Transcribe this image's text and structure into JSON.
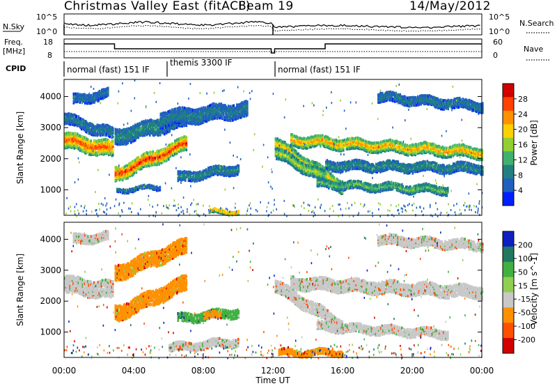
{
  "header": {
    "title": "Christmas Valley East (fitACF)",
    "beam": "Beam 19",
    "date": "14/May/2012"
  },
  "panels": {
    "nsky_label": "N.Sky",
    "nsky_ticks": [
      "10^5",
      "10^0"
    ],
    "nsearch_label": "N.Search",
    "nsearch_ticks": [
      "10^5",
      "10^0"
    ],
    "freq_label_1": "Freq.",
    "freq_label_2": "[MHz]",
    "freq_ticks": [
      "18",
      "8"
    ],
    "nave_label": "Nave",
    "nave_ticks": [
      "60",
      "0"
    ],
    "cpid_label": "CPID",
    "cpid_segments": [
      {
        "label": "normal (fast) 151 IF",
        "start_h": 0,
        "end_h": 6
      },
      {
        "label": "themis 3300 IF",
        "start_h": 6,
        "end_h": 12
      },
      {
        "label": "normal (fast) 151 IF",
        "start_h": 12,
        "end_h": 24
      }
    ]
  },
  "chart_data": [
    {
      "type": "heatmap",
      "name": "power",
      "ylabel": "Slant Range [km]",
      "yticks": [
        "4000",
        "3000",
        "2000",
        "1000"
      ],
      "ytick_values": [
        4000,
        3000,
        2000,
        1000
      ],
      "ylim": [
        180,
        4550
      ],
      "xlim": [
        0,
        24
      ],
      "colorbar_label": "Power [dB]",
      "colorbar_ticks": [
        "28",
        "24",
        "20",
        "16",
        "12",
        "8",
        "4"
      ],
      "colorbar_colors": [
        "#d00000",
        "#ff4000",
        "#ff9000",
        "#ffd000",
        "#90d030",
        "#40b070",
        "#208080",
        "#2060c0",
        "#0020ff"
      ],
      "features": [
        {
          "t0": 0.0,
          "t1": 2.8,
          "r0": 2600,
          "r1": 2300,
          "w": 500,
          "peak": 0.9
        },
        {
          "t0": 0.0,
          "t1": 2.8,
          "r0": 3300,
          "r1": 2800,
          "w": 350,
          "peak": 0.25
        },
        {
          "t0": 0.5,
          "t1": 2.5,
          "r0": 3900,
          "r1": 4100,
          "w": 300,
          "peak": 0.2
        },
        {
          "t0": 2.9,
          "t1": 7.0,
          "r0": 1500,
          "r1": 2500,
          "w": 450,
          "peak": 0.95
        },
        {
          "t0": 2.9,
          "t1": 7.0,
          "r0": 2700,
          "r1": 3300,
          "w": 500,
          "peak": 0.3
        },
        {
          "t0": 5.5,
          "t1": 10.5,
          "r0": 3300,
          "r1": 3600,
          "w": 500,
          "peak": 0.25
        },
        {
          "t0": 6.5,
          "t1": 10.0,
          "r0": 1400,
          "r1": 1700,
          "w": 300,
          "peak": 0.3
        },
        {
          "t0": 3.0,
          "t1": 5.5,
          "r0": 1000,
          "r1": 1100,
          "w": 120,
          "peak": 0.25
        },
        {
          "t0": 8.3,
          "t1": 10.0,
          "r0": 300,
          "r1": 300,
          "w": 120,
          "peak": 0.8
        },
        {
          "t0": 12.1,
          "t1": 16.0,
          "r0": 2500,
          "r1": 1100,
          "w": 400,
          "peak": 0.7
        },
        {
          "t0": 12.1,
          "t1": 15.0,
          "r0": 2200,
          "r1": 1400,
          "w": 350,
          "peak": 0.55
        },
        {
          "t0": 13.0,
          "t1": 24.0,
          "r0": 2600,
          "r1": 2200,
          "w": 350,
          "peak": 0.75
        },
        {
          "t0": 15.0,
          "t1": 24.0,
          "r0": 1800,
          "r1": 1700,
          "w": 300,
          "peak": 0.3
        },
        {
          "t0": 14.5,
          "t1": 22.0,
          "r0": 1200,
          "r1": 1000,
          "w": 250,
          "peak": 0.45
        },
        {
          "t0": 18.0,
          "t1": 24.0,
          "r0": 4000,
          "r1": 3700,
          "w": 300,
          "peak": 0.25
        }
      ]
    },
    {
      "type": "heatmap",
      "name": "velocity",
      "ylabel": "Slant Range [km]",
      "yticks": [
        "4000",
        "3000",
        "2000",
        "1000"
      ],
      "ytick_values": [
        4000,
        3000,
        2000,
        1000
      ],
      "ylim": [
        180,
        4550
      ],
      "xlim": [
        0,
        24
      ],
      "xticks": [
        "00:00",
        "04:00",
        "08:00",
        "12:00",
        "16:00",
        "20:00",
        "00:00"
      ],
      "xtick_values": [
        0,
        4,
        8,
        12,
        16,
        20,
        24
      ],
      "xlabel": "Time UT",
      "colorbar_label": "Velocity [m s^-1]",
      "colorbar_ticks": [
        "200",
        "100",
        "50",
        "15",
        "-15",
        "-50",
        "-100",
        "-200"
      ],
      "colorbar_colors": [
        "#1020c0",
        "#207860",
        "#40b040",
        "#90d050",
        "#c8c8c8",
        "#ff9000",
        "#ff5000",
        "#d00000"
      ],
      "features": [
        {
          "t0": 0.0,
          "t1": 2.8,
          "r0": 2550,
          "r1": 2350,
          "w": 550,
          "vel": 0
        },
        {
          "t0": 0.5,
          "t1": 2.5,
          "r0": 4000,
          "r1": 4100,
          "w": 300,
          "vel": 0
        },
        {
          "t0": 2.9,
          "t1": 7.0,
          "r0": 1600,
          "r1": 2600,
          "w": 500,
          "vel": -50
        },
        {
          "t0": 2.9,
          "t1": 7.0,
          "r0": 2900,
          "r1": 3800,
          "w": 500,
          "vel": -50
        },
        {
          "t0": 6.5,
          "t1": 10.0,
          "r0": 1450,
          "r1": 1650,
          "w": 280,
          "vel": 50
        },
        {
          "t0": 8.0,
          "t1": 9.0,
          "r0": 1550,
          "r1": 1550,
          "w": 200,
          "vel": -50
        },
        {
          "t0": 6.0,
          "t1": 10.0,
          "r0": 500,
          "r1": 700,
          "w": 250,
          "vel": 0
        },
        {
          "t0": 12.1,
          "t1": 16.0,
          "r0": 2500,
          "r1": 1200,
          "w": 400,
          "vel": 0
        },
        {
          "t0": 13.0,
          "t1": 24.0,
          "r0": 2600,
          "r1": 2300,
          "w": 400,
          "vel": 0
        },
        {
          "t0": 14.5,
          "t1": 22.0,
          "r0": 1200,
          "r1": 950,
          "w": 280,
          "vel": 0
        },
        {
          "t0": 12.3,
          "t1": 16.0,
          "r0": 350,
          "r1": 350,
          "w": 200,
          "vel": -50
        },
        {
          "t0": 18.0,
          "t1": 24.0,
          "r0": 4000,
          "r1": 3800,
          "w": 300,
          "vel": 0
        }
      ]
    }
  ]
}
